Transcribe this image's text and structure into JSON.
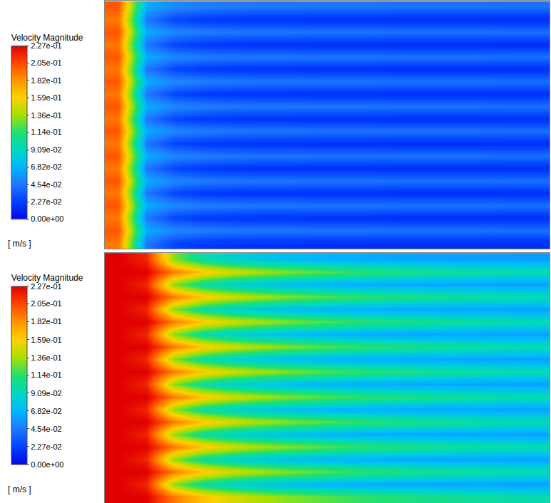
{
  "chart_data": [
    {
      "type": "heatmap",
      "tick_labels": false,
      "colorbar": {
        "title": "Velocity Magnitude",
        "unit": "[ m/s ]",
        "range": [
          0,
          0.227
        ],
        "ticks": [
          {
            "value": 0,
            "label": "0.00e+00"
          },
          {
            "value": 0.0227,
            "label": "2.27e-02"
          },
          {
            "value": 0.0454,
            "label": "4.54e-02"
          },
          {
            "value": 0.0682,
            "label": "6.82e-02"
          },
          {
            "value": 0.0909,
            "label": "9.09e-02"
          },
          {
            "value": 0.114,
            "label": "1.14e-01"
          },
          {
            "value": 0.136,
            "label": "1.36e-01"
          },
          {
            "value": 0.159,
            "label": "1.59e-01"
          },
          {
            "value": 0.182,
            "label": "1.82e-01"
          },
          {
            "value": 0.205,
            "label": "2.05e-01"
          },
          {
            "value": 0.227,
            "label": "2.27e-01"
          }
        ]
      },
      "z": [
        [
          0.19,
          0.045,
          0.025,
          0.02,
          0.018,
          0.017,
          0.017,
          0.016,
          0.016,
          0.016,
          0.015,
          0.015,
          0.015,
          0.015,
          0.015,
          0.015
        ],
        [
          0.2,
          0.065,
          0.052,
          0.048,
          0.046,
          0.045,
          0.045,
          0.044,
          0.044,
          0.044,
          0.043,
          0.043,
          0.043,
          0.043,
          0.042,
          0.042
        ],
        [
          0.19,
          0.045,
          0.025,
          0.02,
          0.018,
          0.017,
          0.017,
          0.016,
          0.016,
          0.016,
          0.015,
          0.015,
          0.015,
          0.015,
          0.015,
          0.015
        ],
        [
          0.2,
          0.065,
          0.052,
          0.048,
          0.046,
          0.045,
          0.045,
          0.044,
          0.044,
          0.044,
          0.043,
          0.043,
          0.043,
          0.043,
          0.042,
          0.042
        ],
        [
          0.19,
          0.045,
          0.025,
          0.02,
          0.018,
          0.017,
          0.017,
          0.016,
          0.016,
          0.016,
          0.015,
          0.015,
          0.015,
          0.015,
          0.015,
          0.015
        ],
        [
          0.2,
          0.065,
          0.052,
          0.048,
          0.046,
          0.045,
          0.045,
          0.044,
          0.044,
          0.044,
          0.043,
          0.043,
          0.043,
          0.043,
          0.042,
          0.042
        ],
        [
          0.19,
          0.045,
          0.025,
          0.02,
          0.018,
          0.017,
          0.017,
          0.016,
          0.016,
          0.016,
          0.015,
          0.015,
          0.015,
          0.015,
          0.015,
          0.015
        ],
        [
          0.2,
          0.065,
          0.052,
          0.048,
          0.046,
          0.045,
          0.045,
          0.044,
          0.044,
          0.044,
          0.043,
          0.043,
          0.043,
          0.043,
          0.042,
          0.042
        ],
        [
          0.19,
          0.045,
          0.025,
          0.02,
          0.018,
          0.017,
          0.017,
          0.016,
          0.016,
          0.016,
          0.015,
          0.015,
          0.015,
          0.015,
          0.015,
          0.015
        ],
        [
          0.2,
          0.065,
          0.052,
          0.048,
          0.046,
          0.045,
          0.045,
          0.044,
          0.044,
          0.044,
          0.043,
          0.043,
          0.043,
          0.043,
          0.042,
          0.042
        ],
        [
          0.19,
          0.045,
          0.025,
          0.02,
          0.018,
          0.017,
          0.017,
          0.016,
          0.016,
          0.016,
          0.015,
          0.015,
          0.015,
          0.015,
          0.015,
          0.015
        ],
        [
          0.2,
          0.065,
          0.052,
          0.048,
          0.046,
          0.045,
          0.045,
          0.044,
          0.044,
          0.044,
          0.043,
          0.043,
          0.043,
          0.043,
          0.042,
          0.042
        ],
        [
          0.19,
          0.045,
          0.025,
          0.02,
          0.018,
          0.017,
          0.017,
          0.016,
          0.016,
          0.016,
          0.015,
          0.015,
          0.015,
          0.015,
          0.015,
          0.015
        ],
        [
          0.2,
          0.065,
          0.052,
          0.048,
          0.046,
          0.045,
          0.045,
          0.044,
          0.044,
          0.044,
          0.043,
          0.043,
          0.043,
          0.043,
          0.042,
          0.042
        ],
        [
          0.19,
          0.045,
          0.025,
          0.02,
          0.018,
          0.017,
          0.017,
          0.016,
          0.016,
          0.016,
          0.015,
          0.015,
          0.015,
          0.015,
          0.015,
          0.015
        ],
        [
          0.2,
          0.065,
          0.052,
          0.048,
          0.046,
          0.045,
          0.045,
          0.044,
          0.044,
          0.044,
          0.043,
          0.043,
          0.043,
          0.043,
          0.042,
          0.042
        ],
        [
          0.19,
          0.045,
          0.025,
          0.02,
          0.018,
          0.017,
          0.017,
          0.016,
          0.016,
          0.016,
          0.015,
          0.015,
          0.015,
          0.015,
          0.015,
          0.015
        ],
        [
          0.2,
          0.065,
          0.052,
          0.048,
          0.046,
          0.045,
          0.045,
          0.044,
          0.044,
          0.044,
          0.043,
          0.043,
          0.043,
          0.043,
          0.042,
          0.042
        ],
        [
          0.19,
          0.045,
          0.025,
          0.02,
          0.018,
          0.017,
          0.017,
          0.016,
          0.016,
          0.016,
          0.015,
          0.015,
          0.015,
          0.015,
          0.015,
          0.015
        ],
        [
          0.2,
          0.065,
          0.052,
          0.048,
          0.046,
          0.045,
          0.045,
          0.044,
          0.044,
          0.044,
          0.043,
          0.043,
          0.043,
          0.043,
          0.042,
          0.042
        ]
      ]
    },
    {
      "type": "heatmap",
      "tick_labels": false,
      "colorbar": {
        "title": "Velocity Magnitude",
        "unit": "[ m/s ]",
        "range": [
          0,
          0.227
        ],
        "ticks": [
          {
            "value": 0,
            "label": "0.00e+00"
          },
          {
            "value": 0.0227,
            "label": "2.27e-02"
          },
          {
            "value": 0.0454,
            "label": "4.54e-02"
          },
          {
            "value": 0.0682,
            "label": "6.82e-02"
          },
          {
            "value": 0.0909,
            "label": "9.09e-02"
          },
          {
            "value": 0.114,
            "label": "1.14e-01"
          },
          {
            "value": 0.136,
            "label": "1.36e-01"
          },
          {
            "value": 0.159,
            "label": "1.59e-01"
          },
          {
            "value": 0.182,
            "label": "1.82e-01"
          },
          {
            "value": 0.205,
            "label": "2.05e-01"
          },
          {
            "value": 0.227,
            "label": "2.27e-01"
          }
        ]
      },
      "z": [
        [
          0.227,
          0.227,
          0.19,
          0.165,
          0.15,
          0.14,
          0.132,
          0.126,
          0.12,
          0.115,
          0.111,
          0.107,
          0.104,
          0.101,
          0.098,
          0.096
        ],
        [
          0.227,
          0.215,
          0.13,
          0.1,
          0.086,
          0.078,
          0.072,
          0.068,
          0.065,
          0.063,
          0.062,
          0.061,
          0.06,
          0.06,
          0.059,
          0.059
        ],
        [
          0.227,
          0.227,
          0.19,
          0.165,
          0.15,
          0.14,
          0.132,
          0.126,
          0.12,
          0.115,
          0.111,
          0.107,
          0.104,
          0.101,
          0.098,
          0.096
        ],
        [
          0.227,
          0.215,
          0.13,
          0.1,
          0.086,
          0.078,
          0.072,
          0.068,
          0.065,
          0.063,
          0.062,
          0.061,
          0.06,
          0.06,
          0.059,
          0.059
        ],
        [
          0.227,
          0.227,
          0.19,
          0.165,
          0.15,
          0.14,
          0.132,
          0.126,
          0.12,
          0.115,
          0.111,
          0.107,
          0.104,
          0.101,
          0.098,
          0.096
        ],
        [
          0.227,
          0.215,
          0.13,
          0.1,
          0.086,
          0.078,
          0.072,
          0.068,
          0.065,
          0.063,
          0.062,
          0.061,
          0.06,
          0.06,
          0.059,
          0.059
        ],
        [
          0.227,
          0.227,
          0.19,
          0.165,
          0.15,
          0.14,
          0.132,
          0.126,
          0.12,
          0.115,
          0.111,
          0.107,
          0.104,
          0.101,
          0.098,
          0.096
        ],
        [
          0.227,
          0.215,
          0.13,
          0.1,
          0.086,
          0.078,
          0.072,
          0.068,
          0.065,
          0.063,
          0.062,
          0.061,
          0.06,
          0.06,
          0.059,
          0.059
        ],
        [
          0.227,
          0.227,
          0.19,
          0.165,
          0.15,
          0.14,
          0.132,
          0.126,
          0.12,
          0.115,
          0.111,
          0.107,
          0.104,
          0.101,
          0.098,
          0.096
        ],
        [
          0.227,
          0.215,
          0.13,
          0.1,
          0.086,
          0.078,
          0.072,
          0.068,
          0.065,
          0.063,
          0.062,
          0.061,
          0.06,
          0.06,
          0.059,
          0.059
        ],
        [
          0.227,
          0.227,
          0.19,
          0.165,
          0.15,
          0.14,
          0.132,
          0.126,
          0.12,
          0.115,
          0.111,
          0.107,
          0.104,
          0.101,
          0.098,
          0.096
        ],
        [
          0.227,
          0.215,
          0.13,
          0.1,
          0.086,
          0.078,
          0.072,
          0.068,
          0.065,
          0.063,
          0.062,
          0.061,
          0.06,
          0.06,
          0.059,
          0.059
        ],
        [
          0.227,
          0.227,
          0.19,
          0.165,
          0.15,
          0.14,
          0.132,
          0.126,
          0.12,
          0.115,
          0.111,
          0.107,
          0.104,
          0.101,
          0.098,
          0.096
        ],
        [
          0.227,
          0.215,
          0.13,
          0.1,
          0.086,
          0.078,
          0.072,
          0.068,
          0.065,
          0.063,
          0.062,
          0.061,
          0.06,
          0.06,
          0.059,
          0.059
        ],
        [
          0.227,
          0.227,
          0.19,
          0.165,
          0.15,
          0.14,
          0.132,
          0.126,
          0.12,
          0.115,
          0.111,
          0.107,
          0.104,
          0.101,
          0.098,
          0.096
        ],
        [
          0.227,
          0.215,
          0.13,
          0.1,
          0.086,
          0.078,
          0.072,
          0.068,
          0.065,
          0.063,
          0.062,
          0.061,
          0.06,
          0.06,
          0.059,
          0.059
        ],
        [
          0.227,
          0.227,
          0.19,
          0.165,
          0.15,
          0.14,
          0.132,
          0.126,
          0.12,
          0.115,
          0.111,
          0.107,
          0.104,
          0.101,
          0.098,
          0.096
        ],
        [
          0.227,
          0.215,
          0.13,
          0.1,
          0.086,
          0.078,
          0.072,
          0.068,
          0.065,
          0.063,
          0.062,
          0.061,
          0.06,
          0.06,
          0.059,
          0.059
        ],
        [
          0.227,
          0.227,
          0.19,
          0.165,
          0.15,
          0.14,
          0.132,
          0.126,
          0.12,
          0.115,
          0.111,
          0.107,
          0.104,
          0.101,
          0.098,
          0.096
        ],
        [
          0.227,
          0.215,
          0.13,
          0.1,
          0.086,
          0.078,
          0.072,
          0.068,
          0.065,
          0.063,
          0.062,
          0.061,
          0.06,
          0.06,
          0.059,
          0.059
        ]
      ]
    }
  ]
}
